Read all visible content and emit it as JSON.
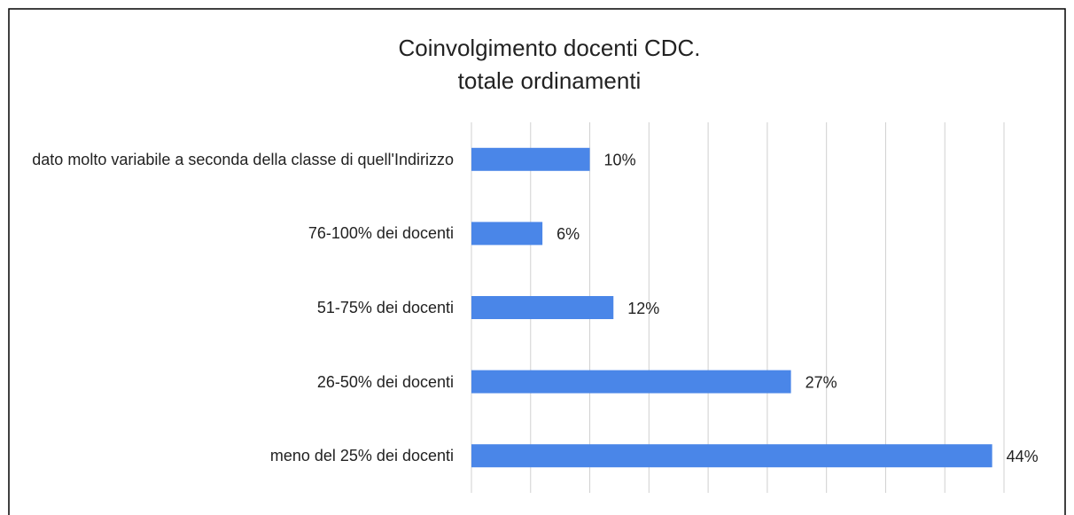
{
  "chart_data": {
    "type": "bar",
    "orientation": "horizontal",
    "title": [
      "Coinvolgimento  docenti CDC.",
      "totale ordinamenti"
    ],
    "categories": [
      "dato molto variabile a seconda della classe di quell'Indirizzo",
      "76-100% dei docenti",
      "51-75% dei docenti",
      "26-50% dei docenti",
      "meno del 25% dei docenti"
    ],
    "values": [
      10,
      6,
      12,
      27,
      44
    ],
    "value_labels": [
      "10%",
      "6%",
      "12%",
      "27%",
      "44%"
    ],
    "color": "#4a86e8",
    "xlim": [
      0,
      45
    ],
    "xticks": [
      0,
      5,
      10,
      15,
      20,
      25,
      30,
      35,
      40,
      45
    ],
    "grid": true
  }
}
